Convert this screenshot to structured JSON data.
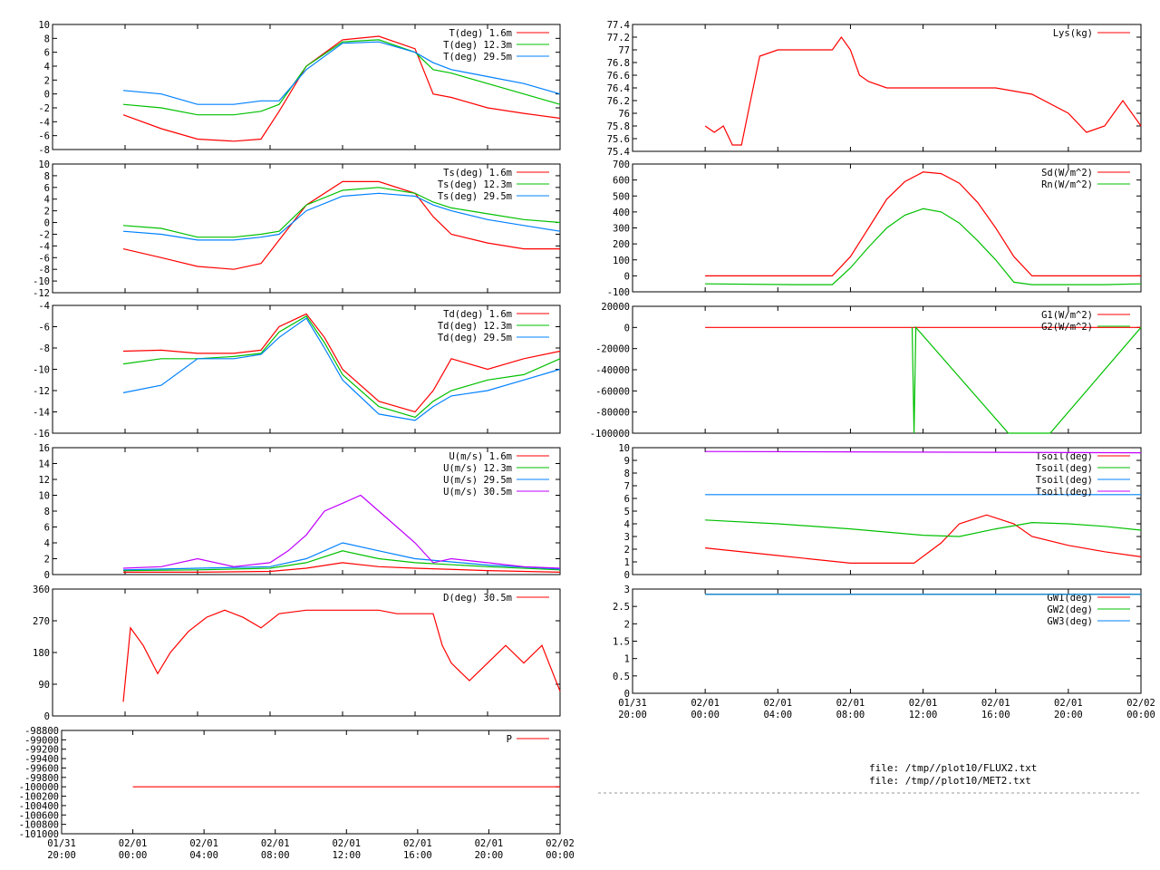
{
  "footer": {
    "file1": "file: /tmp//plot10/FLUX2.txt",
    "file2": "file: /tmp//plot10/MET2.txt"
  },
  "colors": {
    "red": "#ff0000",
    "green": "#00c000",
    "blue": "#0080ff",
    "purple": "#c000ff"
  },
  "time_axis": {
    "start_hour": 20,
    "end_hour": 48,
    "ticks": [
      {
        "t": 20,
        "line1": "01/31",
        "line2": "20:00"
      },
      {
        "t": 24,
        "line1": "02/01",
        "line2": "00:00"
      },
      {
        "t": 28,
        "line1": "02/01",
        "line2": "04:00"
      },
      {
        "t": 32,
        "line1": "02/01",
        "line2": "08:00"
      },
      {
        "t": 36,
        "line1": "02/01",
        "line2": "12:00"
      },
      {
        "t": 40,
        "line1": "02/01",
        "line2": "16:00"
      },
      {
        "t": 44,
        "line1": "02/01",
        "line2": "20:00"
      },
      {
        "t": 48,
        "line1": "02/02",
        "line2": "00:00"
      }
    ]
  },
  "chart_data": [
    {
      "id": "air-temp",
      "type": "line",
      "ylim": [
        -8,
        10
      ],
      "yticks": [
        "-8",
        "-6",
        "-4",
        "-2",
        "0",
        "2",
        "4",
        "6",
        "8",
        "10"
      ],
      "series": [
        {
          "name": "T(deg)  1.6m",
          "color": "#ff0000",
          "x": [
            23.9,
            26,
            28,
            30,
            31.5,
            32.5,
            34,
            36,
            38,
            40,
            41,
            42,
            44,
            46,
            48
          ],
          "y": [
            -3,
            -5,
            -6.5,
            -6.8,
            -6.5,
            -2.5,
            4,
            7.8,
            8.3,
            6.5,
            0,
            -0.5,
            -2,
            -2.8,
            -3.5
          ]
        },
        {
          "name": "T(deg) 12.3m",
          "color": "#00c000",
          "x": [
            23.9,
            26,
            28,
            30,
            31.5,
            32.5,
            34,
            36,
            38,
            40,
            41,
            42,
            44,
            46,
            48
          ],
          "y": [
            -1.5,
            -2,
            -3,
            -3,
            -2.5,
            -1.5,
            4,
            7.5,
            7.8,
            6,
            3.5,
            3,
            1.5,
            0,
            -1.5
          ]
        },
        {
          "name": "T(deg) 29.5m",
          "color": "#0080ff",
          "x": [
            23.9,
            26,
            28,
            30,
            31.5,
            32.5,
            34,
            36,
            38,
            40,
            41,
            42,
            44,
            46,
            48
          ],
          "y": [
            0.5,
            0,
            -1.5,
            -1.5,
            -1,
            -1,
            3.5,
            7.3,
            7.5,
            6,
            4.5,
            3.5,
            2.5,
            1.5,
            0
          ]
        }
      ]
    },
    {
      "id": "surface-temp",
      "type": "line",
      "ylim": [
        -12,
        10
      ],
      "yticks": [
        "-12",
        "-10",
        "-8",
        "-6",
        "-4",
        "-2",
        "0",
        "2",
        "4",
        "6",
        "8",
        "10"
      ],
      "series": [
        {
          "name": "Ts(deg)  1.6m",
          "color": "#ff0000",
          "x": [
            23.9,
            26,
            28,
            30,
            31.5,
            32.5,
            34,
            36,
            38,
            40,
            41,
            42,
            44,
            46,
            48
          ],
          "y": [
            -4.5,
            -6,
            -7.5,
            -8,
            -7,
            -3,
            3,
            7,
            7,
            5,
            1,
            -2,
            -3.5,
            -4.5,
            -4.5
          ]
        },
        {
          "name": "Ts(deg) 12.3m",
          "color": "#00c000",
          "x": [
            23.9,
            26,
            28,
            30,
            31.5,
            32.5,
            34,
            36,
            38,
            40,
            41,
            42,
            44,
            46,
            48
          ],
          "y": [
            -0.5,
            -1,
            -2.5,
            -2.5,
            -2,
            -1.5,
            3,
            5.5,
            6,
            5,
            3.5,
            2.5,
            1.5,
            0.5,
            0
          ]
        },
        {
          "name": "Ts(deg) 29.5m",
          "color": "#0080ff",
          "x": [
            23.9,
            26,
            28,
            30,
            31.5,
            32.5,
            34,
            36,
            38,
            40,
            41,
            42,
            44,
            46,
            48
          ],
          "y": [
            -1.5,
            -2,
            -3,
            -3,
            -2.5,
            -2,
            2,
            4.5,
            5,
            4.5,
            3,
            2,
            0.5,
            -0.5,
            -1.5
          ]
        }
      ]
    },
    {
      "id": "dew-point",
      "type": "line",
      "ylim": [
        -16,
        -4
      ],
      "yticks": [
        "-16",
        "-14",
        "-12",
        "-10",
        "-8",
        "-6",
        "-4"
      ],
      "series": [
        {
          "name": "Td(deg)  1.6m",
          "color": "#ff0000",
          "x": [
            23.9,
            26,
            28,
            30,
            31.5,
            32.5,
            34,
            35,
            36,
            38,
            40,
            41,
            42,
            44,
            46,
            48
          ],
          "y": [
            -8.3,
            -8.2,
            -8.5,
            -8.5,
            -8.2,
            -6,
            -4.8,
            -7,
            -10,
            -13,
            -14,
            -12,
            -9,
            -10,
            -9,
            -8.3
          ]
        },
        {
          "name": "Td(deg) 12.3m",
          "color": "#00c000",
          "x": [
            23.9,
            26,
            28,
            30,
            31.5,
            32.5,
            34,
            35,
            36,
            38,
            40,
            41,
            42,
            44,
            46,
            48
          ],
          "y": [
            -9.5,
            -9,
            -9,
            -8.8,
            -8.5,
            -6.5,
            -5,
            -7.5,
            -10.5,
            -13.5,
            -14.5,
            -13,
            -12,
            -11,
            -10.5,
            -9
          ]
        },
        {
          "name": "Td(deg) 29.5m",
          "color": "#0080ff",
          "x": [
            23.9,
            26,
            28,
            30,
            31.5,
            32.5,
            34,
            35,
            36,
            38,
            40,
            41,
            42,
            44,
            46,
            48
          ],
          "y": [
            -12.2,
            -11.5,
            -9,
            -9,
            -8.6,
            -7,
            -5.2,
            -8,
            -11,
            -14.2,
            -14.8,
            -13.5,
            -12.5,
            -12,
            -11,
            -10
          ]
        }
      ]
    },
    {
      "id": "wind-speed",
      "type": "line",
      "ylim": [
        0,
        16
      ],
      "yticks": [
        "0",
        "2",
        "4",
        "6",
        "8",
        "10",
        "12",
        "14",
        "16"
      ],
      "series": [
        {
          "name": "U(m/s)  1.6m",
          "color": "#ff0000",
          "x": [
            23.9,
            28,
            32,
            34,
            36,
            38,
            40,
            44,
            48
          ],
          "y": [
            0.3,
            0.3,
            0.4,
            0.8,
            1.5,
            1,
            0.8,
            0.5,
            0.3
          ]
        },
        {
          "name": "U(m/s) 12.3m",
          "color": "#00c000",
          "x": [
            23.9,
            28,
            32,
            34,
            36,
            38,
            40,
            44,
            48
          ],
          "y": [
            0.5,
            0.6,
            0.8,
            1.5,
            3,
            2,
            1.5,
            1,
            0.6
          ]
        },
        {
          "name": "U(m/s) 29.5m",
          "color": "#0080ff",
          "x": [
            23.9,
            28,
            32,
            34,
            36,
            38,
            40,
            44,
            48
          ],
          "y": [
            0.6,
            0.8,
            1,
            2,
            4,
            3,
            2,
            1.2,
            0.7
          ]
        },
        {
          "name": "U(m/s) 30.5m",
          "color": "#c000ff",
          "x": [
            23.9,
            26,
            28,
            30,
            32,
            33,
            34,
            35,
            36,
            37,
            38,
            39,
            40,
            41,
            42,
            44,
            46,
            48
          ],
          "y": [
            0.8,
            1,
            2,
            1,
            1.5,
            3,
            5,
            8,
            9,
            10,
            8,
            6,
            4,
            1.5,
            2,
            1.5,
            1,
            0.8
          ]
        }
      ]
    },
    {
      "id": "wind-direction",
      "type": "line",
      "ylim": [
        0,
        360
      ],
      "yticks": [
        "0",
        "90",
        "180",
        "270",
        "360"
      ],
      "series": [
        {
          "name": "D(deg)  30.5m",
          "color": "#ff0000",
          "x": [
            23.9,
            24.3,
            25,
            25.8,
            26.5,
            27.5,
            28.5,
            29.5,
            30.5,
            31.5,
            32.5,
            34,
            36,
            38,
            39,
            40,
            41,
            41.5,
            42,
            43,
            44,
            45,
            46,
            47,
            48
          ],
          "y": [
            40,
            250,
            200,
            120,
            180,
            240,
            280,
            300,
            280,
            250,
            290,
            300,
            300,
            300,
            290,
            290,
            290,
            200,
            150,
            100,
            150,
            200,
            150,
            200,
            70
          ]
        }
      ]
    },
    {
      "id": "pressure",
      "type": "line",
      "ylim": [
        -101000,
        -98800
      ],
      "yticks": [
        "-101000",
        "-100800",
        "-100600",
        "-100400",
        "-100200",
        "-100000",
        "-99800",
        "-99600",
        "-99400",
        "-99200",
        "-99000",
        "-98800"
      ],
      "series": [
        {
          "name": "P",
          "color": "#ff0000",
          "x": [
            24,
            48
          ],
          "y": [
            -100000,
            -100000
          ]
        }
      ]
    },
    {
      "id": "lys",
      "type": "line",
      "ylim": [
        75.4,
        77.4
      ],
      "yticks": [
        "75.4",
        "75.6",
        "75.8",
        "76",
        "76.2",
        "76.4",
        "76.6",
        "76.8",
        "77",
        "77.2",
        "77.4"
      ],
      "series": [
        {
          "name": "Lys(kg)",
          "color": "#ff0000",
          "x": [
            24,
            24.5,
            25,
            25.5,
            26,
            26.5,
            27,
            28,
            29,
            30,
            31,
            31.5,
            32,
            32.5,
            33,
            34,
            36,
            38,
            40,
            42,
            44,
            45,
            46,
            47,
            48
          ],
          "y": [
            75.8,
            75.7,
            75.8,
            75.5,
            75.5,
            76.2,
            76.9,
            77,
            77,
            77,
            77,
            77.2,
            77,
            76.6,
            76.5,
            76.4,
            76.4,
            76.4,
            76.4,
            76.3,
            76,
            75.7,
            75.8,
            76.2,
            75.8
          ]
        }
      ]
    },
    {
      "id": "radiation",
      "type": "line",
      "ylim": [
        -100,
        700
      ],
      "yticks": [
        "-100",
        "0",
        "100",
        "200",
        "300",
        "400",
        "500",
        "600",
        "700"
      ],
      "series": [
        {
          "name": "Sd(W/m^2)",
          "color": "#ff0000",
          "x": [
            24,
            29,
            31,
            32,
            33,
            34,
            35,
            36,
            37,
            38,
            39,
            40,
            41,
            42,
            44,
            46,
            48
          ],
          "y": [
            0,
            0,
            0,
            120,
            300,
            480,
            590,
            650,
            640,
            580,
            460,
            300,
            120,
            0,
            0,
            0,
            0
          ]
        },
        {
          "name": "Rn(W/m^2)",
          "color": "#00c000",
          "x": [
            24,
            29,
            31,
            32,
            33,
            34,
            35,
            36,
            37,
            38,
            39,
            40,
            41,
            42,
            44,
            46,
            48
          ],
          "y": [
            -50,
            -55,
            -55,
            50,
            180,
            300,
            380,
            420,
            400,
            330,
            220,
            100,
            -40,
            -55,
            -55,
            -55,
            -50
          ]
        }
      ]
    },
    {
      "id": "ground-flux",
      "type": "line",
      "ylim": [
        -100000,
        20000
      ],
      "yticks": [
        "-100000",
        "-80000",
        "-60000",
        "-40000",
        "-20000",
        "0",
        "20000"
      ],
      "series": [
        {
          "name": "G1(W/m^2)",
          "color": "#ff0000",
          "x": [
            24,
            48
          ],
          "y": [
            0,
            0
          ]
        },
        {
          "name": "G2(W/m^2)",
          "color": "#00c000",
          "x": [
            35.4,
            35.5,
            35.6,
            40.7,
            41.5,
            42.5,
            43,
            48
          ],
          "y": [
            0,
            -100000,
            0,
            -100000,
            -100000,
            -100000,
            -100000,
            0
          ]
        }
      ]
    },
    {
      "id": "soil-temp",
      "type": "line",
      "ylim": [
        0,
        10
      ],
      "yticks": [
        "0",
        "1",
        "2",
        "3",
        "4",
        "5",
        "6",
        "7",
        "8",
        "9",
        "10"
      ],
      "series": [
        {
          "name": "Tsoil(deg)",
          "color": "#ff0000",
          "x": [
            24,
            28,
            32,
            35.5,
            37,
            38,
            39.5,
            41,
            42,
            44,
            46,
            48
          ],
          "y": [
            2.1,
            1.5,
            0.9,
            0.9,
            2.5,
            4,
            4.7,
            4,
            3,
            2.3,
            1.8,
            1.4
          ]
        },
        {
          "name": "Tsoil(deg)",
          "color": "#00c000",
          "x": [
            24,
            28,
            32,
            36,
            38,
            40,
            42,
            44,
            46,
            48
          ],
          "y": [
            4.3,
            4,
            3.6,
            3.1,
            3,
            3.6,
            4.1,
            4,
            3.8,
            3.5
          ]
        },
        {
          "name": "Tsoil(deg)",
          "color": "#0080ff",
          "x": [
            24,
            48
          ],
          "y": [
            6.3,
            6.3
          ]
        },
        {
          "name": "Tsoil(deg)",
          "color": "#c000ff",
          "x": [
            24,
            48
          ],
          "y": [
            9.7,
            9.6
          ]
        }
      ]
    },
    {
      "id": "ground-water",
      "type": "line",
      "ylim": [
        0,
        3
      ],
      "yticks": [
        "0",
        "0.5",
        "1",
        "1.5",
        "2",
        "2.5",
        "3"
      ],
      "series": [
        {
          "name": "GW1(deg)",
          "color": "#ff0000",
          "x": [
            24,
            48
          ],
          "y": [
            2.85,
            2.85
          ]
        },
        {
          "name": "GW2(deg)",
          "color": "#00c000",
          "x": [
            24,
            48
          ],
          "y": [
            2.85,
            2.85
          ]
        },
        {
          "name": "GW3(deg)",
          "color": "#0080ff",
          "x": [
            24,
            48
          ],
          "y": [
            2.85,
            2.85
          ]
        }
      ]
    }
  ]
}
